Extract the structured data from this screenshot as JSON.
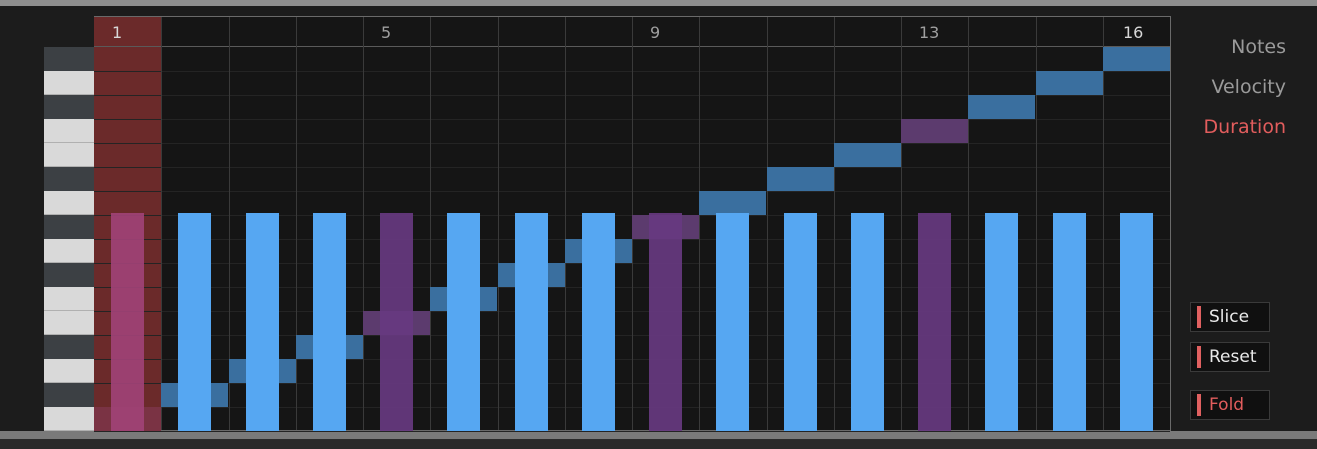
{
  "sequencer": {
    "steps": 16,
    "step_labels": [
      {
        "step": 1,
        "label": "1"
      },
      {
        "step": 5,
        "label": "5"
      },
      {
        "step": 9,
        "label": "9"
      },
      {
        "step": 13,
        "label": "13"
      },
      {
        "step": 16,
        "label": "16"
      }
    ],
    "pitch_range": 16,
    "notes": [
      {
        "step": 1,
        "pitch": 0,
        "velocity": 0.95,
        "muted": false,
        "selected": true
      },
      {
        "step": 2,
        "pitch": 1,
        "velocity": 0.95,
        "muted": false,
        "selected": false
      },
      {
        "step": 3,
        "pitch": 2,
        "velocity": 0.95,
        "muted": false,
        "selected": false
      },
      {
        "step": 4,
        "pitch": 3,
        "velocity": 0.95,
        "muted": false,
        "selected": false
      },
      {
        "step": 5,
        "pitch": 4,
        "velocity": 0.95,
        "muted": true,
        "selected": false
      },
      {
        "step": 6,
        "pitch": 5,
        "velocity": 0.95,
        "muted": false,
        "selected": false
      },
      {
        "step": 7,
        "pitch": 6,
        "velocity": 0.95,
        "muted": false,
        "selected": false
      },
      {
        "step": 8,
        "pitch": 7,
        "velocity": 0.95,
        "muted": false,
        "selected": false
      },
      {
        "step": 9,
        "pitch": 8,
        "velocity": 0.95,
        "muted": true,
        "selected": false
      },
      {
        "step": 10,
        "pitch": 9,
        "velocity": 0.95,
        "muted": false,
        "selected": false
      },
      {
        "step": 11,
        "pitch": 10,
        "velocity": 0.95,
        "muted": false,
        "selected": false
      },
      {
        "step": 12,
        "pitch": 11,
        "velocity": 0.95,
        "muted": false,
        "selected": false
      },
      {
        "step": 13,
        "pitch": 12,
        "velocity": 0.95,
        "muted": true,
        "selected": false
      },
      {
        "step": 14,
        "pitch": 13,
        "velocity": 0.95,
        "muted": false,
        "selected": false
      },
      {
        "step": 15,
        "pitch": 14,
        "velocity": 0.95,
        "muted": false,
        "selected": false
      },
      {
        "step": 16,
        "pitch": 15,
        "velocity": 0.95,
        "muted": false,
        "selected": false
      }
    ]
  },
  "modes": {
    "notes_label": "Notes",
    "velocity_label": "Velocity",
    "duration_label": "Duration",
    "active": "Duration"
  },
  "buttons": {
    "slice_label": "Slice",
    "reset_label": "Reset",
    "fold_label": "Fold"
  },
  "colors": {
    "bar": "#56a7f2",
    "bar_muted": "#673a80",
    "bar_selected": "#a04276",
    "note": "#3a6f9f",
    "note_muted": "#5c3b6e",
    "selected_step_bg": "#6b2a2a",
    "mode_inactive": "#9a9a9a",
    "mode_active": "#e25d5d",
    "led": "#e06060"
  }
}
